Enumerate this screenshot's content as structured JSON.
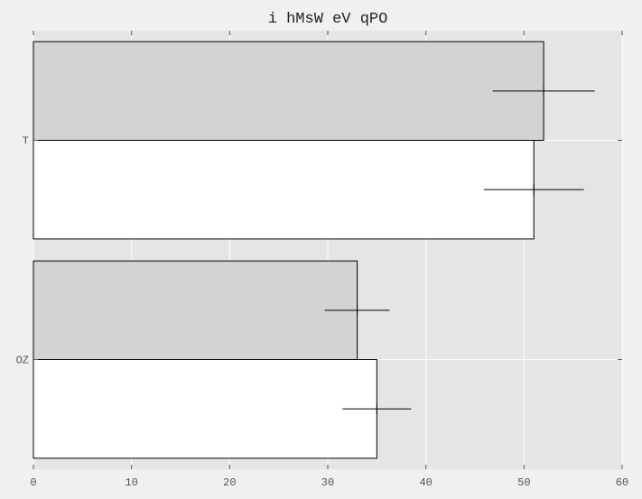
{
  "chart_data": {
    "type": "bar",
    "orientation": "horizontal",
    "title": "i hMsW eV qPO",
    "xlabel": "",
    "ylabel": "",
    "categories": [
      "T",
      "OZ"
    ],
    "xlim": [
      0,
      60
    ],
    "xticks": [
      0,
      10,
      20,
      30,
      40,
      50,
      60
    ],
    "grid": true,
    "series": [
      {
        "values": [
          52,
          33
        ],
        "errors": [
          5.2,
          3.3
        ],
        "color": "#d3d3d3"
      },
      {
        "values": [
          51,
          35
        ],
        "errors": [
          5.1,
          3.5
        ],
        "color": "#ffffff"
      }
    ],
    "colors": {
      "background": "#f0f0f0",
      "plot_area": "#e5e5e5",
      "grid": "#ffffff"
    }
  }
}
